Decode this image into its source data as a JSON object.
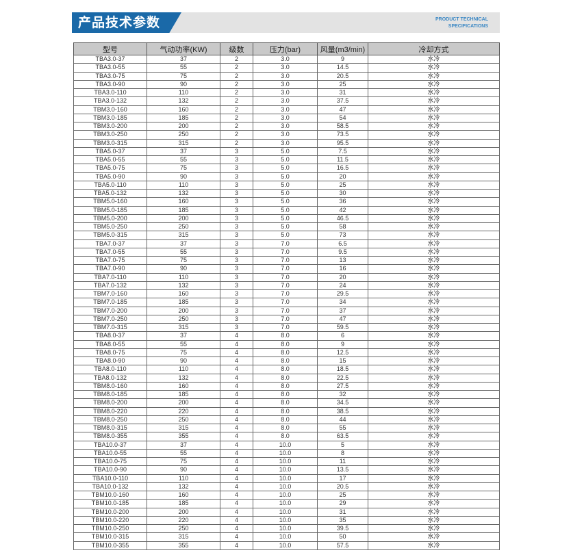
{
  "header": {
    "title": "产品技术参数",
    "subtitle_line1": "PRODUCT TECHNICAL",
    "subtitle_line2": "SPECIFICATIONS",
    "accent_color": "#1a69a8"
  },
  "table": {
    "columns": [
      "型号",
      "气动功率(KW)",
      "级数",
      "压力(bar)",
      "风量(m3/min)",
      "冷却方式"
    ],
    "rows": [
      [
        "TBA3.0-37",
        "37",
        "2",
        "3.0",
        "9",
        "水冷"
      ],
      [
        "TBA3.0-55",
        "55",
        "2",
        "3.0",
        "14.5",
        "水冷"
      ],
      [
        "TBA3.0-75",
        "75",
        "2",
        "3.0",
        "20.5",
        "水冷"
      ],
      [
        "TBA3.0-90",
        "90",
        "2",
        "3.0",
        "25",
        "水冷"
      ],
      [
        "TBA3.0-110",
        "110",
        "2",
        "3.0",
        "31",
        "水冷"
      ],
      [
        "TBA3.0-132",
        "132",
        "2",
        "3.0",
        "37.5",
        "水冷"
      ],
      [
        "TBM3.0-160",
        "160",
        "2",
        "3.0",
        "47",
        "水冷"
      ],
      [
        "TBM3.0-185",
        "185",
        "2",
        "3.0",
        "54",
        "水冷"
      ],
      [
        "TBM3.0-200",
        "200",
        "2",
        "3.0",
        "58.5",
        "水冷"
      ],
      [
        "TBM3.0-250",
        "250",
        "2",
        "3.0",
        "73.5",
        "水冷"
      ],
      [
        "TBM3.0-315",
        "315",
        "2",
        "3.0",
        "95.5",
        "水冷"
      ],
      [
        "TBA5.0-37",
        "37",
        "3",
        "5.0",
        "7.5",
        "水冷"
      ],
      [
        "TBA5.0-55",
        "55",
        "3",
        "5.0",
        "11.5",
        "水冷"
      ],
      [
        "TBA5.0-75",
        "75",
        "3",
        "5.0",
        "16.5",
        "水冷"
      ],
      [
        "TBA5.0-90",
        "90",
        "3",
        "5.0",
        "20",
        "水冷"
      ],
      [
        "TBA5.0-110",
        "110",
        "3",
        "5.0",
        "25",
        "水冷"
      ],
      [
        "TBA5.0-132",
        "132",
        "3",
        "5.0",
        "30",
        "水冷"
      ],
      [
        "TBM5.0-160",
        "160",
        "3",
        "5.0",
        "36",
        "水冷"
      ],
      [
        "TBM5.0-185",
        "185",
        "3",
        "5.0",
        "42",
        "水冷"
      ],
      [
        "TBM5.0-200",
        "200",
        "3",
        "5.0",
        "46.5",
        "水冷"
      ],
      [
        "TBM5.0-250",
        "250",
        "3",
        "5.0",
        "58",
        "水冷"
      ],
      [
        "TBM5.0-315",
        "315",
        "3",
        "5.0",
        "73",
        "水冷"
      ],
      [
        "TBA7.0-37",
        "37",
        "3",
        "7.0",
        "6.5",
        "水冷"
      ],
      [
        "TBA7.0-55",
        "55",
        "3",
        "7.0",
        "9.5",
        "水冷"
      ],
      [
        "TBA7.0-75",
        "75",
        "3",
        "7.0",
        "13",
        "水冷"
      ],
      [
        "TBA7.0-90",
        "90",
        "3",
        "7.0",
        "16",
        "水冷"
      ],
      [
        "TBA7.0-110",
        "110",
        "3",
        "7.0",
        "20",
        "水冷"
      ],
      [
        "TBA7.0-132",
        "132",
        "3",
        "7.0",
        "24",
        "水冷"
      ],
      [
        "TBM7.0-160",
        "160",
        "3",
        "7.0",
        "29.5",
        "水冷"
      ],
      [
        "TBM7.0-185",
        "185",
        "3",
        "7.0",
        "34",
        "水冷"
      ],
      [
        "TBM7.0-200",
        "200",
        "3",
        "7.0",
        "37",
        "水冷"
      ],
      [
        "TBM7.0-250",
        "250",
        "3",
        "7.0",
        "47",
        "水冷"
      ],
      [
        "TBM7.0-315",
        "315",
        "3",
        "7.0",
        "59.5",
        "水冷"
      ],
      [
        "TBA8.0-37",
        "37",
        "4",
        "8.0",
        "6",
        "水冷"
      ],
      [
        "TBA8.0-55",
        "55",
        "4",
        "8.0",
        "9",
        "水冷"
      ],
      [
        "TBA8.0-75",
        "75",
        "4",
        "8.0",
        "12.5",
        "水冷"
      ],
      [
        "TBA8.0-90",
        "90",
        "4",
        "8.0",
        "15",
        "水冷"
      ],
      [
        "TBA8.0-110",
        "110",
        "4",
        "8.0",
        "18.5",
        "水冷"
      ],
      [
        "TBA8.0-132",
        "132",
        "4",
        "8.0",
        "22.5",
        "水冷"
      ],
      [
        "TBM8.0-160",
        "160",
        "4",
        "8.0",
        "27.5",
        "水冷"
      ],
      [
        "TBM8.0-185",
        "185",
        "4",
        "8.0",
        "32",
        "水冷"
      ],
      [
        "TBM8.0-200",
        "200",
        "4",
        "8.0",
        "34.5",
        "水冷"
      ],
      [
        "TBM8.0-220",
        "220",
        "4",
        "8.0",
        "38.5",
        "水冷"
      ],
      [
        "TBM8.0-250",
        "250",
        "4",
        "8.0",
        "44",
        "水冷"
      ],
      [
        "TBM8.0-315",
        "315",
        "4",
        "8.0",
        "55",
        "水冷"
      ],
      [
        "TBM8.0-355",
        "355",
        "4",
        "8.0",
        "63.5",
        "水冷"
      ],
      [
        "TBA10.0-37",
        "37",
        "4",
        "10.0",
        "5",
        "水冷"
      ],
      [
        "TBA10.0-55",
        "55",
        "4",
        "10.0",
        "8",
        "水冷"
      ],
      [
        "TBA10.0-75",
        "75",
        "4",
        "10.0",
        "11",
        "水冷"
      ],
      [
        "TBA10.0-90",
        "90",
        "4",
        "10.0",
        "13.5",
        "水冷"
      ],
      [
        "TBA10.0-110",
        "110",
        "4",
        "10.0",
        "17",
        "水冷"
      ],
      [
        "TBA10.0-132",
        "132",
        "4",
        "10.0",
        "20.5",
        "水冷"
      ],
      [
        "TBM10.0-160",
        "160",
        "4",
        "10.0",
        "25",
        "水冷"
      ],
      [
        "TBM10.0-185",
        "185",
        "4",
        "10.0",
        "29",
        "水冷"
      ],
      [
        "TBM10.0-200",
        "200",
        "4",
        "10.0",
        "31",
        "水冷"
      ],
      [
        "TBM10.0-220",
        "220",
        "4",
        "10.0",
        "35",
        "水冷"
      ],
      [
        "TBM10.0-250",
        "250",
        "4",
        "10.0",
        "39.5",
        "水冷"
      ],
      [
        "TBM10.0-315",
        "315",
        "4",
        "10.0",
        "50",
        "水冷"
      ],
      [
        "TBM10.0-355",
        "355",
        "4",
        "10.0",
        "57.5",
        "水冷"
      ]
    ]
  }
}
